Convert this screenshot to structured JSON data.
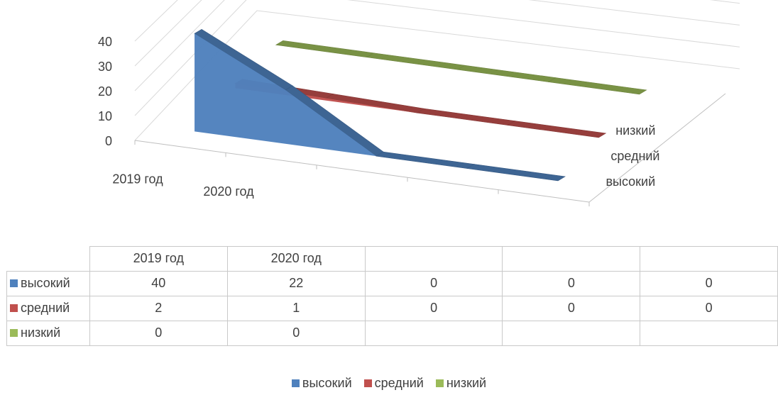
{
  "chart_data": {
    "type": "area",
    "categories": [
      "2019 год",
      "2020 год",
      "",
      "",
      ""
    ],
    "series": [
      {
        "name": "высокий",
        "values": [
          40,
          22,
          0,
          0,
          0
        ],
        "color": "#4f81bd"
      },
      {
        "name": "средний",
        "values": [
          2,
          1,
          0,
          0,
          0
        ],
        "color": "#c0504d"
      },
      {
        "name": "низкий",
        "values": [
          0,
          0,
          null,
          null,
          null
        ],
        "color": "#9bbb59"
      }
    ],
    "y_ticks": [
      "0",
      "10",
      "20",
      "30",
      "40"
    ],
    "ylim": [
      0,
      40
    ],
    "grid": true,
    "legend": "bottom",
    "has_data_table": true
  },
  "table": {
    "headers": [
      "2019 год",
      "2020 год",
      "",
      "",
      ""
    ],
    "rows": [
      {
        "label": "высокий",
        "color": "#4f81bd",
        "values": [
          "40",
          "22",
          "0",
          "0",
          "0"
        ]
      },
      {
        "label": "средний",
        "color": "#c0504d",
        "values": [
          "2",
          "1",
          "0",
          "0",
          "0"
        ]
      },
      {
        "label": "низкий",
        "color": "#9bbb59",
        "values": [
          "0",
          "0",
          "",
          "",
          ""
        ]
      }
    ]
  },
  "legend": [
    "высокий",
    "средний",
    "низкий"
  ]
}
